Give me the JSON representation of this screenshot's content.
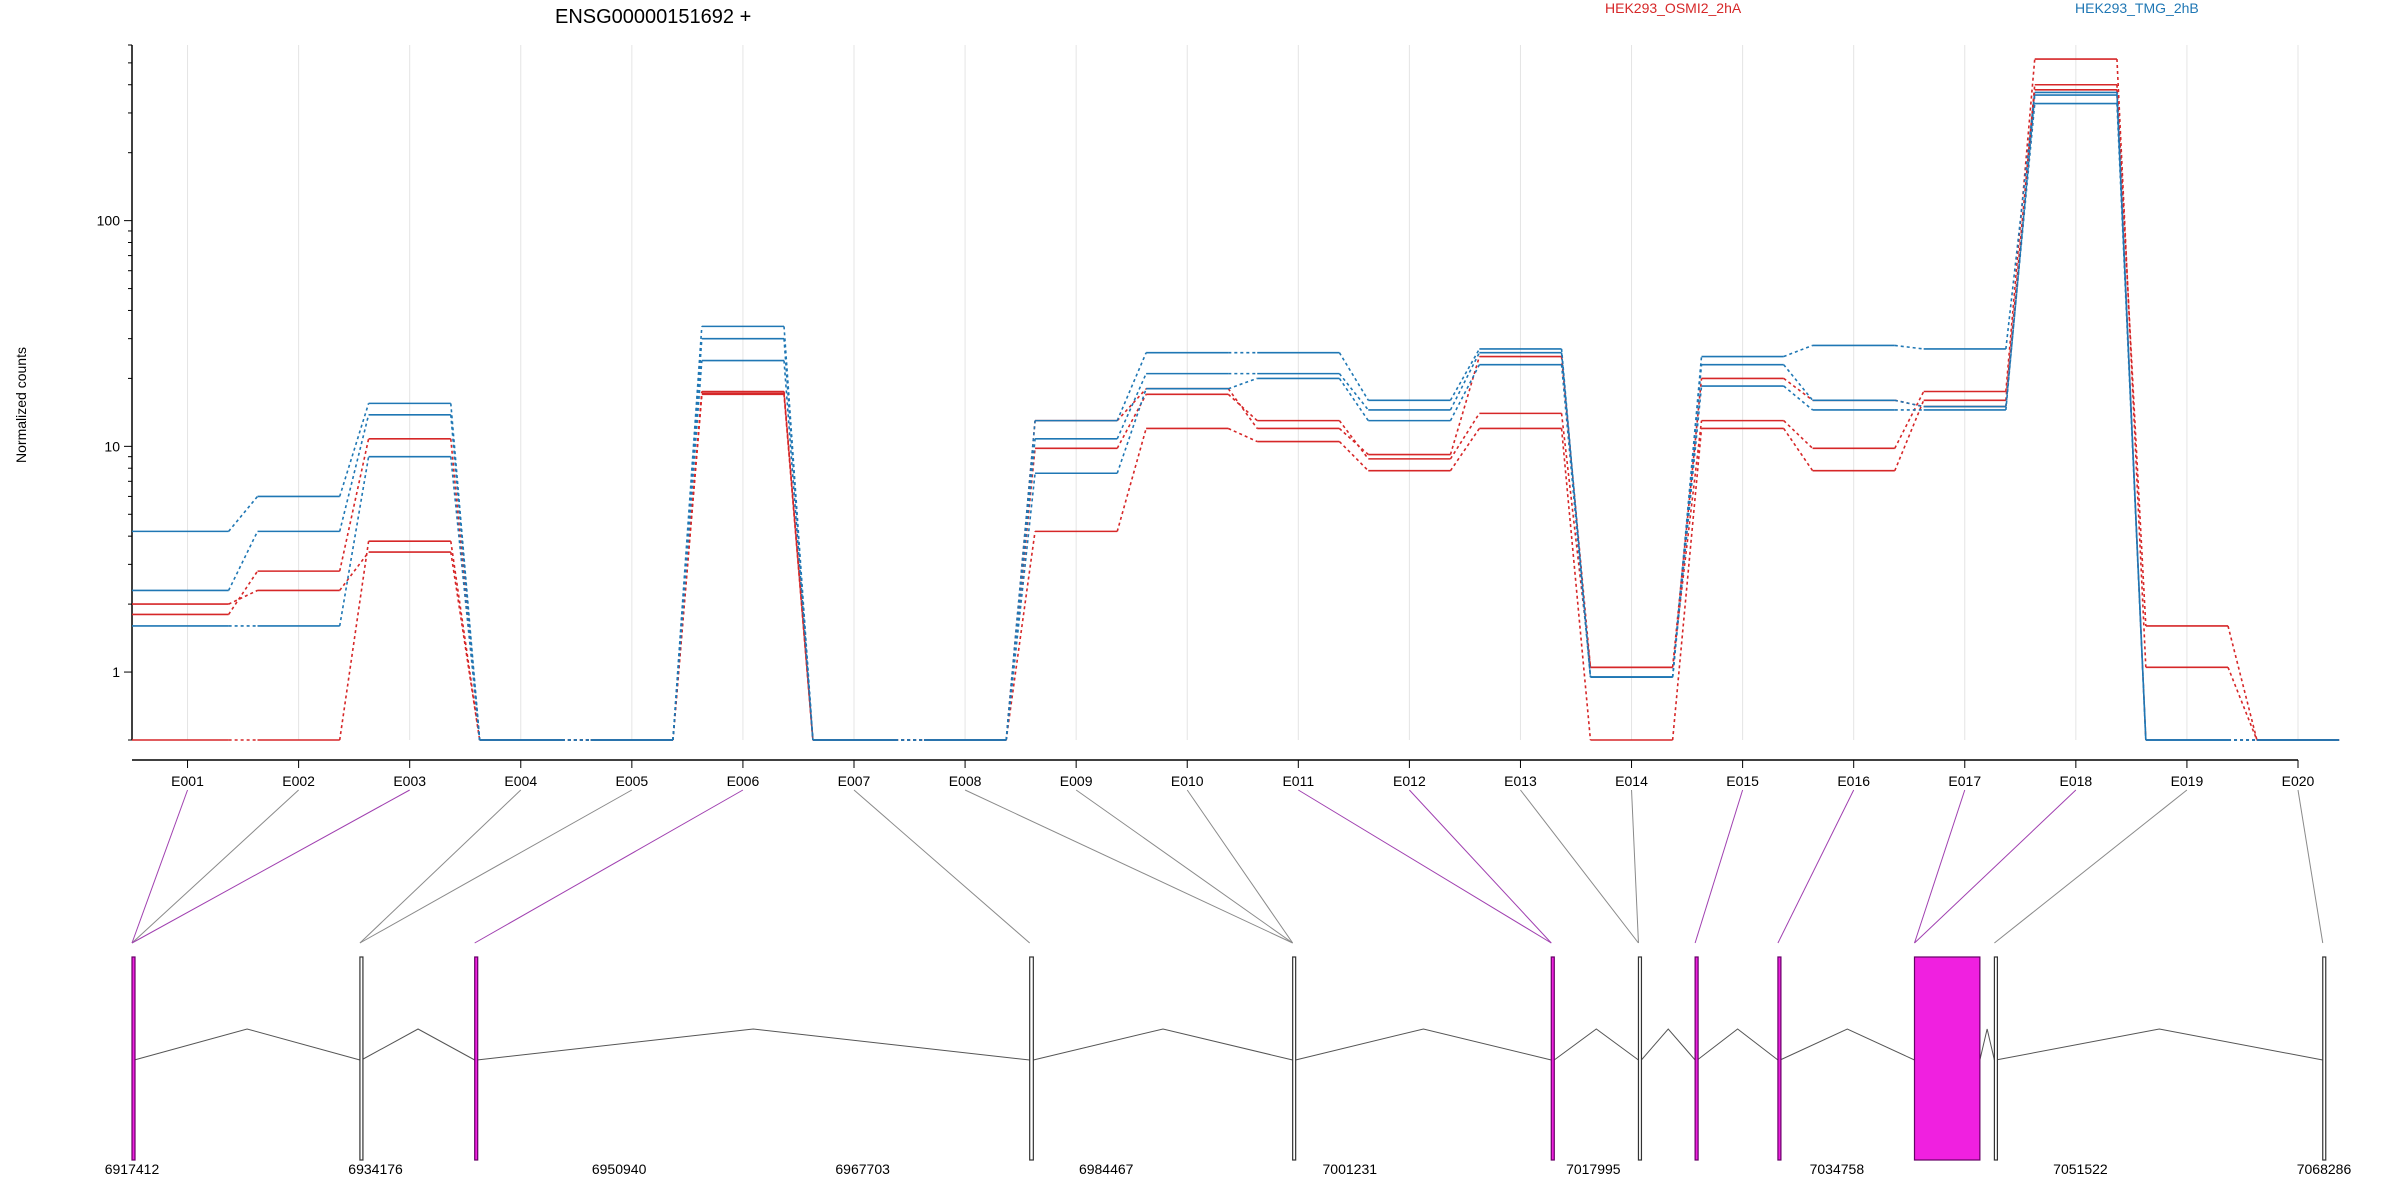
{
  "chart_data": {
    "type": "line",
    "title": "ENSG00000151692 +",
    "ylabel": "Normalized counts",
    "yscale": "log",
    "ylim": [
      0.5,
      600
    ],
    "yticks": [
      1,
      10,
      100
    ],
    "categories": [
      "E001",
      "E002",
      "E003",
      "E004",
      "E005",
      "E006",
      "E007",
      "E008",
      "E009",
      "E010",
      "E011",
      "E012",
      "E013",
      "E014",
      "E015",
      "E016",
      "E017",
      "E018",
      "E019",
      "E020"
    ],
    "legend": [
      {
        "name": "HEK293_OSMI2_2hA",
        "color": "#d62728"
      },
      {
        "name": "HEK293_TMG_2hB",
        "color": "#1f77b4"
      }
    ],
    "grid": true,
    "series": [
      {
        "group": "HEK293_OSMI2_2hA",
        "values": [
          0.5,
          0.5,
          3.8,
          0.5,
          0.5,
          17,
          0.5,
          0.5,
          4.2,
          12,
          10.5,
          7.8,
          12,
          0.5,
          12,
          7.8,
          16,
          400,
          1.6,
          0.5
        ]
      },
      {
        "group": "HEK293_OSMI2_2hA",
        "values": [
          2.0,
          2.3,
          3.4,
          0.5,
          0.5,
          17.5,
          0.5,
          0.5,
          9.8,
          17,
          13,
          8.8,
          14,
          1.05,
          13,
          9.8,
          17.5,
          520,
          1.05,
          0.5
        ]
      },
      {
        "group": "HEK293_OSMI2_2hA",
        "values": [
          1.8,
          2.8,
          10.8,
          0.5,
          0.5,
          17.2,
          0.5,
          0.5,
          13,
          18,
          12,
          9.2,
          25,
          1.05,
          20,
          16,
          15,
          380,
          0.5,
          0.5
        ]
      },
      {
        "group": "HEK293_TMG_2hB",
        "values": [
          4.2,
          6.0,
          15.5,
          0.5,
          0.5,
          34,
          0.5,
          0.5,
          13,
          26,
          26,
          16,
          27,
          0.95,
          25,
          28,
          27,
          370,
          0.5,
          0.5
        ]
      },
      {
        "group": "HEK293_TMG_2hB",
        "values": [
          2.3,
          4.2,
          13.8,
          0.5,
          0.5,
          30,
          0.5,
          0.5,
          10.8,
          21,
          21,
          14.5,
          26,
          0.95,
          23,
          16,
          15,
          330,
          0.5,
          0.5
        ]
      },
      {
        "group": "HEK293_TMG_2hB",
        "values": [
          1.6,
          1.6,
          9.0,
          0.5,
          0.5,
          24,
          0.5,
          0.5,
          7.6,
          18,
          20,
          13,
          23,
          0.95,
          18.5,
          14.5,
          14.5,
          360,
          0.5,
          0.5
        ]
      }
    ],
    "genomic_axis": {
      "ticks": [
        6917412,
        6934176,
        6950940,
        6967703,
        6984467,
        7001231,
        7017995,
        7034758,
        7051522,
        7068286
      ],
      "range": [
        6917412,
        7068286
      ]
    },
    "exons": [
      {
        "id": "E001",
        "start": 6917412,
        "end": 6917570,
        "highlight": true
      },
      {
        "id": "E002",
        "start": 6917412,
        "end": 6917570,
        "highlight": false
      },
      {
        "id": "E003",
        "start": 6917412,
        "end": 6917570,
        "highlight": true
      },
      {
        "id": "E004",
        "start": 6933100,
        "end": 6933200,
        "highlight": false
      },
      {
        "id": "E005",
        "start": 6933100,
        "end": 6933200,
        "highlight": false
      },
      {
        "id": "E006",
        "start": 6941000,
        "end": 6941150,
        "highlight": true
      },
      {
        "id": "E007",
        "start": 6979200,
        "end": 6979450,
        "highlight": false
      },
      {
        "id": "E008",
        "start": 6997300,
        "end": 6997500,
        "highlight": false
      },
      {
        "id": "E009",
        "start": 6997300,
        "end": 6997500,
        "highlight": false
      },
      {
        "id": "E010",
        "start": 6997300,
        "end": 6997500,
        "highlight": false
      },
      {
        "id": "E011",
        "start": 7015100,
        "end": 7015300,
        "highlight": true
      },
      {
        "id": "E012",
        "start": 7015100,
        "end": 7015300,
        "highlight": true
      },
      {
        "id": "E013",
        "start": 7021100,
        "end": 7021300,
        "highlight": false
      },
      {
        "id": "E014",
        "start": 7021100,
        "end": 7021300,
        "highlight": false
      },
      {
        "id": "E015",
        "start": 7025000,
        "end": 7025150,
        "highlight": true
      },
      {
        "id": "E016",
        "start": 7030700,
        "end": 7030850,
        "highlight": true
      },
      {
        "id": "E017",
        "start": 7040100,
        "end": 7044600,
        "highlight": true
      },
      {
        "id": "E018",
        "start": 7040100,
        "end": 7044600,
        "highlight": true
      },
      {
        "id": "E019",
        "start": 7045600,
        "end": 7045700,
        "highlight": false
      },
      {
        "id": "E020",
        "start": 7068200,
        "end": 7068286,
        "highlight": false
      }
    ]
  }
}
